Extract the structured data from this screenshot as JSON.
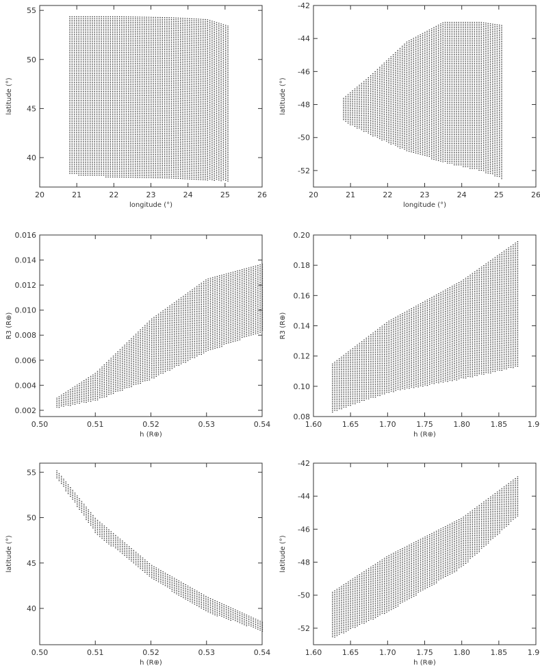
{
  "chart_data": [
    {
      "type": "scatter",
      "xlabel": "longitude (°)",
      "ylabel": "latitude (°)",
      "xlim": [
        20,
        26
      ],
      "ylim": [
        37,
        55.5
      ],
      "xticks": [
        "20",
        "21",
        "22",
        "23",
        "24",
        "25",
        "26"
      ],
      "yticks": [
        "40",
        "45",
        "50",
        "55"
      ],
      "region": {
        "x_range": [
          20.8,
          25.1
        ],
        "bottom": [
          [
            20.8,
            38.3
          ],
          [
            21.5,
            38.1
          ],
          [
            23,
            37.9
          ],
          [
            24.5,
            37.7
          ],
          [
            25.1,
            37.6
          ]
        ],
        "top": [
          [
            20.8,
            54.4
          ],
          [
            22,
            54.4
          ],
          [
            23.5,
            54.3
          ],
          [
            24.5,
            54.1
          ],
          [
            25.1,
            53.4
          ]
        ]
      }
    },
    {
      "type": "scatter",
      "xlabel": "longitude (°)",
      "ylabel": "latitude (°)",
      "xlim": [
        20,
        26
      ],
      "ylim": [
        -53,
        -42
      ],
      "xticks": [
        "20",
        "21",
        "22",
        "23",
        "24",
        "25",
        "26"
      ],
      "yticks": [
        "-52",
        "-50",
        "-48",
        "-46",
        "-44",
        "-42"
      ],
      "region": {
        "x_range": [
          20.8,
          25.1
        ],
        "bottom": [
          [
            20.8,
            -49.0
          ],
          [
            21.5,
            -49.8
          ],
          [
            22.5,
            -50.8
          ],
          [
            23.5,
            -51.5
          ],
          [
            24.5,
            -52.0
          ],
          [
            25.1,
            -52.5
          ]
        ],
        "top": [
          [
            20.8,
            -47.6
          ],
          [
            21.5,
            -46.3
          ],
          [
            22.5,
            -44.2
          ],
          [
            23.5,
            -43.0
          ],
          [
            24.5,
            -43.0
          ],
          [
            25.1,
            -43.2
          ]
        ]
      }
    },
    {
      "type": "scatter",
      "xlabel": "h (R⊕)",
      "ylabel": "R3 (R⊕)",
      "xlim": [
        0.5,
        0.54
      ],
      "ylim": [
        0.0015,
        0.016
      ],
      "xticks": [
        "0.50",
        "0.51",
        "0.52",
        "0.53",
        "0.54"
      ],
      "yticks": [
        "0.002",
        "0.004",
        "0.006",
        "0.008",
        "0.010",
        "0.012",
        "0.014",
        "0.016"
      ],
      "region": {
        "x_range": [
          0.503,
          0.54
        ],
        "bottom": [
          [
            0.503,
            0.0022
          ],
          [
            0.51,
            0.0028
          ],
          [
            0.52,
            0.0045
          ],
          [
            0.53,
            0.0067
          ],
          [
            0.54,
            0.0083
          ]
        ],
        "top": [
          [
            0.503,
            0.003
          ],
          [
            0.51,
            0.005
          ],
          [
            0.52,
            0.0093
          ],
          [
            0.53,
            0.0125
          ],
          [
            0.54,
            0.0137
          ]
        ]
      }
    },
    {
      "type": "scatter",
      "xlabel": "h (R⊕)",
      "ylabel": "R3 (R⊕)",
      "xlim": [
        1.6,
        1.9
      ],
      "ylim": [
        0.08,
        0.2
      ],
      "xticks": [
        "1.60",
        "1.65",
        "1.70",
        "1.75",
        "1.80",
        "1.85",
        "1.90"
      ],
      "yticks": [
        "0.08",
        "0.10",
        "0.12",
        "0.14",
        "0.16",
        "0.18",
        "0.20"
      ],
      "region": {
        "x_range": [
          1.625,
          1.875
        ],
        "bottom": [
          [
            1.625,
            0.083
          ],
          [
            1.7,
            0.096
          ],
          [
            1.8,
            0.105
          ],
          [
            1.875,
            0.113
          ]
        ],
        "top": [
          [
            1.625,
            0.115
          ],
          [
            1.7,
            0.143
          ],
          [
            1.8,
            0.17
          ],
          [
            1.875,
            0.196
          ]
        ]
      }
    },
    {
      "type": "scatter",
      "xlabel": "h (R⊕)",
      "ylabel": "latitude (°)",
      "xlim": [
        0.5,
        0.54
      ],
      "ylim": [
        36,
        56
      ],
      "xticks": [
        "0.50",
        "0.51",
        "0.52",
        "0.53",
        "0.54"
      ],
      "yticks": [
        "40",
        "45",
        "50",
        "55"
      ],
      "region": {
        "x_range": [
          0.503,
          0.54
        ],
        "bottom": [
          [
            0.503,
            54.4
          ],
          [
            0.51,
            48.3
          ],
          [
            0.52,
            43.3
          ],
          [
            0.53,
            39.6
          ],
          [
            0.54,
            37.5
          ]
        ],
        "top": [
          [
            0.503,
            55.2
          ],
          [
            0.51,
            49.9
          ],
          [
            0.52,
            44.8
          ],
          [
            0.53,
            41.3
          ],
          [
            0.54,
            38.5
          ]
        ]
      }
    },
    {
      "type": "scatter",
      "xlabel": "h (R⊕)",
      "ylabel": "latitude (°)",
      "xlim": [
        1.6,
        1.9
      ],
      "ylim": [
        -53,
        -42
      ],
      "xticks": [
        "1.60",
        "1.65",
        "1.70",
        "1.75",
        "1.80",
        "1.85",
        "1.90"
      ],
      "yticks": [
        "-52",
        "-50",
        "-48",
        "-46",
        "-44",
        "-42"
      ],
      "region": {
        "x_range": [
          1.625,
          1.875
        ],
        "bottom": [
          [
            1.625,
            -52.6
          ],
          [
            1.7,
            -51.0
          ],
          [
            1.8,
            -48.3
          ],
          [
            1.875,
            -45.2
          ]
        ],
        "top": [
          [
            1.625,
            -49.8
          ],
          [
            1.7,
            -47.6
          ],
          [
            1.8,
            -45.3
          ],
          [
            1.875,
            -42.8
          ]
        ]
      }
    }
  ],
  "style": {
    "point_color": "#111111",
    "frame_color": "#333333",
    "background": "#ffffff"
  }
}
